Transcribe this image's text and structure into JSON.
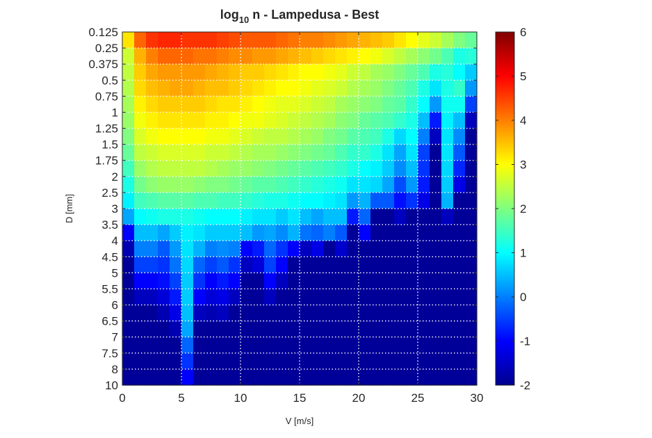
{
  "chart_data": {
    "type": "heatmap",
    "title_main": "log",
    "title_sub": "10",
    "title_rest": " n - Lampedusa - Best",
    "xlabel": "V [m/s]",
    "ylabel": "D [mm]",
    "xlim": [
      0,
      30
    ],
    "x_ticks": [
      "0",
      "5",
      "10",
      "15",
      "20",
      "25",
      "30"
    ],
    "x_tick_values": [
      0,
      5,
      10,
      15,
      20,
      25,
      30
    ],
    "y_tick_labels": [
      "0.125",
      "0.25",
      "0.375",
      "0.5",
      "0.75",
      "1",
      "1.25",
      "1.5",
      "1.75",
      "2",
      "2.5",
      "3",
      "3.5",
      "4",
      "4.5",
      "5",
      "5.5",
      "6",
      "6.5",
      "7",
      "7.5",
      "8",
      "10"
    ],
    "colorbar": {
      "colormap": "jet",
      "clim": [
        -2,
        6
      ],
      "ticks": [
        "-2",
        "-1",
        "0",
        "1",
        "2",
        "3",
        "4",
        "5",
        "6"
      ],
      "tick_values": [
        -2,
        -1,
        0,
        1,
        2,
        3,
        4,
        5,
        6
      ]
    },
    "grid": "dotted-white",
    "n_velocity_bins": 30,
    "n_diameter_bins": 22,
    "z_note": "log10 n per (diameter row, velocity column)",
    "z": [
      [
        3.2,
        4.2,
        4.6,
        4.7,
        4.7,
        4.6,
        4.6,
        4.6,
        4.5,
        4.4,
        4.3,
        4.3,
        4.3,
        4.2,
        4.1,
        4.0,
        4.0,
        3.9,
        3.8,
        3.7,
        3.6,
        3.5,
        3.4,
        3.2,
        3.0,
        2.8,
        2.6,
        2.3,
        2.0,
        1.8
      ],
      [
        2.6,
        3.6,
        4.0,
        4.2,
        4.2,
        4.2,
        4.1,
        4.1,
        4.0,
        3.9,
        3.9,
        3.8,
        3.8,
        3.7,
        3.6,
        3.5,
        3.4,
        3.3,
        3.2,
        3.1,
        3.0,
        2.9,
        2.7,
        2.5,
        2.3,
        2.1,
        1.9,
        1.6,
        1.2,
        1.3
      ],
      [
        2.5,
        3.4,
        3.7,
        3.8,
        3.8,
        3.8,
        3.8,
        3.7,
        3.6,
        3.5,
        3.4,
        3.4,
        3.3,
        3.2,
        3.1,
        3.0,
        3.0,
        2.9,
        2.8,
        2.6,
        2.5,
        2.3,
        2.2,
        2.0,
        1.8,
        1.6,
        1.2,
        1.3,
        1.0,
        0.6
      ],
      [
        2.4,
        3.3,
        3.5,
        3.6,
        3.7,
        3.7,
        3.6,
        3.5,
        3.5,
        3.4,
        3.3,
        3.2,
        3.1,
        3.0,
        3.0,
        2.9,
        2.8,
        2.7,
        2.6,
        2.4,
        2.3,
        2.2,
        2.0,
        1.8,
        1.6,
        1.2,
        0.8,
        1.2,
        1.4,
        0.2
      ],
      [
        2.3,
        3.1,
        3.3,
        3.4,
        3.4,
        3.4,
        3.4,
        3.3,
        3.2,
        3.2,
        3.1,
        3.0,
        2.9,
        2.8,
        2.8,
        2.7,
        2.6,
        2.5,
        2.3,
        2.2,
        2.1,
        2.0,
        1.8,
        1.7,
        1.4,
        1.0,
        0.2,
        1.1,
        1.1,
        -0.5
      ],
      [
        2.2,
        2.9,
        3.1,
        3.2,
        3.2,
        3.2,
        3.2,
        3.1,
        3.1,
        3.0,
        2.9,
        2.9,
        2.8,
        2.7,
        2.6,
        2.5,
        2.4,
        2.3,
        2.1,
        2.0,
        1.8,
        1.7,
        1.6,
        1.4,
        1.2,
        0.5,
        -0.8,
        0.9,
        0.5,
        -1.5
      ],
      [
        2.0,
        2.7,
        2.9,
        3.0,
        3.0,
        3.0,
        3.0,
        2.9,
        2.9,
        2.8,
        2.7,
        2.6,
        2.5,
        2.5,
        2.4,
        2.3,
        2.2,
        2.0,
        1.9,
        1.7,
        1.6,
        1.5,
        1.2,
        0.7,
        1.0,
        0.0,
        -1.5,
        0.8,
        0.1,
        -1.8
      ],
      [
        1.8,
        2.5,
        2.6,
        2.7,
        2.7,
        2.7,
        2.7,
        2.6,
        2.6,
        2.5,
        2.4,
        2.3,
        2.3,
        2.2,
        2.1,
        2.0,
        1.9,
        1.8,
        1.6,
        1.4,
        1.4,
        1.2,
        0.8,
        0.3,
        0.8,
        -0.5,
        -1.8,
        0.8,
        -0.3,
        -1.8
      ],
      [
        1.5,
        2.2,
        2.4,
        2.5,
        2.5,
        2.5,
        2.5,
        2.4,
        2.3,
        2.2,
        2.2,
        2.1,
        2.0,
        1.9,
        1.8,
        1.7,
        1.6,
        1.5,
        1.4,
        1.2,
        1.0,
        0.9,
        0.6,
        0.1,
        0.5,
        -0.6,
        -1.8,
        0.7,
        -0.7,
        -1.8
      ],
      [
        1.2,
        1.9,
        2.1,
        2.2,
        2.2,
        2.2,
        2.1,
        2.0,
        2.0,
        1.9,
        1.8,
        1.7,
        1.7,
        1.6,
        1.5,
        1.4,
        1.3,
        1.2,
        1.1,
        0.8,
        0.8,
        0.7,
        0.3,
        -0.4,
        0.2,
        -0.8,
        -1.8,
        0.6,
        -1.2,
        -1.8
      ],
      [
        0.9,
        1.5,
        1.6,
        1.7,
        1.7,
        1.7,
        1.6,
        1.6,
        1.5,
        1.5,
        1.4,
        1.3,
        1.2,
        1.2,
        1.1,
        1.0,
        1.0,
        0.9,
        0.8,
        0.2,
        0.4,
        -0.3,
        -0.3,
        -0.9,
        -0.6,
        -1.2,
        -1.8,
        0.4,
        -1.8,
        -1.8
      ],
      [
        0.3,
        1.0,
        1.1,
        1.2,
        1.2,
        1.2,
        1.1,
        1.0,
        1.0,
        1.0,
        0.9,
        0.8,
        0.8,
        0.6,
        0.8,
        0.5,
        0.3,
        0.5,
        0.5,
        -0.8,
        -0.2,
        -1.8,
        -1.8,
        -1.5,
        -1.8,
        -1.8,
        -1.8,
        -1.5,
        -1.8,
        -1.8
      ],
      [
        -1.0,
        0.5,
        0.5,
        0.3,
        0.6,
        0.9,
        0.8,
        0.6,
        0.6,
        0.6,
        0.5,
        0.2,
        0.3,
        0.1,
        0.4,
        -0.1,
        -0.2,
        0.0,
        -0.3,
        -1.8,
        -1.0,
        -1.8,
        -1.8,
        -1.8,
        -1.8,
        -1.8,
        -1.8,
        -1.8,
        -1.8,
        -1.8
      ],
      [
        -1.6,
        0.0,
        0.0,
        -0.3,
        0.2,
        0.8,
        0.4,
        0.0,
        0.1,
        0.0,
        -1.0,
        -0.8,
        -0.2,
        -0.6,
        -1.0,
        -1.5,
        -1.2,
        -1.8,
        -1.4,
        -1.8,
        -1.8,
        -1.8,
        -1.8,
        -1.8,
        -1.8,
        -1.8,
        -1.8,
        -1.8,
        -1.8,
        -1.8
      ],
      [
        -1.8,
        -0.5,
        -0.5,
        -0.6,
        -0.1,
        0.7,
        -0.2,
        -0.5,
        -0.3,
        -0.6,
        -1.5,
        -1.3,
        -0.5,
        -1.0,
        -1.8,
        -1.8,
        -1.8,
        -1.8,
        -1.8,
        -1.8,
        -1.8,
        -1.8,
        -1.8,
        -1.8,
        -1.8,
        -1.8,
        -1.8,
        -1.8,
        -1.8,
        -1.8
      ],
      [
        -1.8,
        -1.0,
        -1.0,
        -0.9,
        -0.5,
        0.6,
        -0.6,
        -1.0,
        -0.8,
        -1.0,
        -1.8,
        -1.8,
        -1.0,
        -1.5,
        -1.8,
        -1.8,
        -1.8,
        -1.8,
        -1.8,
        -1.8,
        -1.8,
        -1.8,
        -1.8,
        -1.8,
        -1.8,
        -1.8,
        -1.8,
        -1.8,
        -1.8,
        -1.8
      ],
      [
        -1.8,
        -1.5,
        -1.5,
        -1.3,
        -0.8,
        0.6,
        -1.0,
        -1.3,
        -1.2,
        -1.5,
        -1.8,
        -1.8,
        -1.5,
        -1.8,
        -1.8,
        -1.8,
        -1.8,
        -1.8,
        -1.8,
        -1.8,
        -1.8,
        -1.8,
        -1.8,
        -1.8,
        -1.8,
        -1.8,
        -1.8,
        -1.8,
        -1.8,
        -1.8
      ],
      [
        -1.8,
        -1.8,
        -1.8,
        -1.6,
        -1.2,
        0.5,
        -1.5,
        -1.6,
        -1.5,
        -1.8,
        -1.8,
        -1.8,
        -1.8,
        -1.8,
        -1.8,
        -1.8,
        -1.8,
        -1.8,
        -1.8,
        -1.8,
        -1.8,
        -1.8,
        -1.8,
        -1.8,
        -1.8,
        -1.8,
        -1.8,
        -1.8,
        -1.8,
        -1.8
      ],
      [
        -1.8,
        -1.8,
        -1.8,
        -1.8,
        -1.6,
        0.3,
        -1.8,
        -1.8,
        -1.8,
        -1.8,
        -1.8,
        -1.8,
        -1.8,
        -1.8,
        -1.8,
        -1.8,
        -1.8,
        -1.8,
        -1.8,
        -1.8,
        -1.8,
        -1.8,
        -1.8,
        -1.8,
        -1.8,
        -1.8,
        -1.8,
        -1.8,
        -1.8,
        -1.8
      ],
      [
        -1.8,
        -1.8,
        -1.8,
        -1.8,
        -1.8,
        -0.2,
        -1.8,
        -1.8,
        -1.8,
        -1.8,
        -1.8,
        -1.8,
        -1.8,
        -1.8,
        -1.8,
        -1.8,
        -1.8,
        -1.8,
        -1.8,
        -1.8,
        -1.8,
        -1.8,
        -1.8,
        -1.8,
        -1.8,
        -1.8,
        -1.8,
        -1.8,
        -1.8,
        -1.8
      ],
      [
        -1.8,
        -1.8,
        -1.8,
        -1.8,
        -1.8,
        -0.6,
        -1.8,
        -1.8,
        -1.8,
        -1.8,
        -1.8,
        -1.8,
        -1.8,
        -1.8,
        -1.8,
        -1.8,
        -1.8,
        -1.8,
        -1.8,
        -1.8,
        -1.8,
        -1.8,
        -1.8,
        -1.8,
        -1.8,
        -1.8,
        -1.8,
        -1.8,
        -1.8,
        -1.8
      ],
      [
        -1.8,
        -1.8,
        -1.8,
        -1.8,
        -1.8,
        -1.0,
        -1.8,
        -1.8,
        -1.8,
        -1.8,
        -1.8,
        -1.8,
        -1.8,
        -1.8,
        -1.8,
        -1.8,
        -1.8,
        -1.8,
        -1.8,
        -1.8,
        -1.8,
        -1.8,
        -1.8,
        -1.8,
        -1.8,
        -1.8,
        -1.8,
        -1.8,
        -1.8,
        -1.8
      ]
    ]
  }
}
